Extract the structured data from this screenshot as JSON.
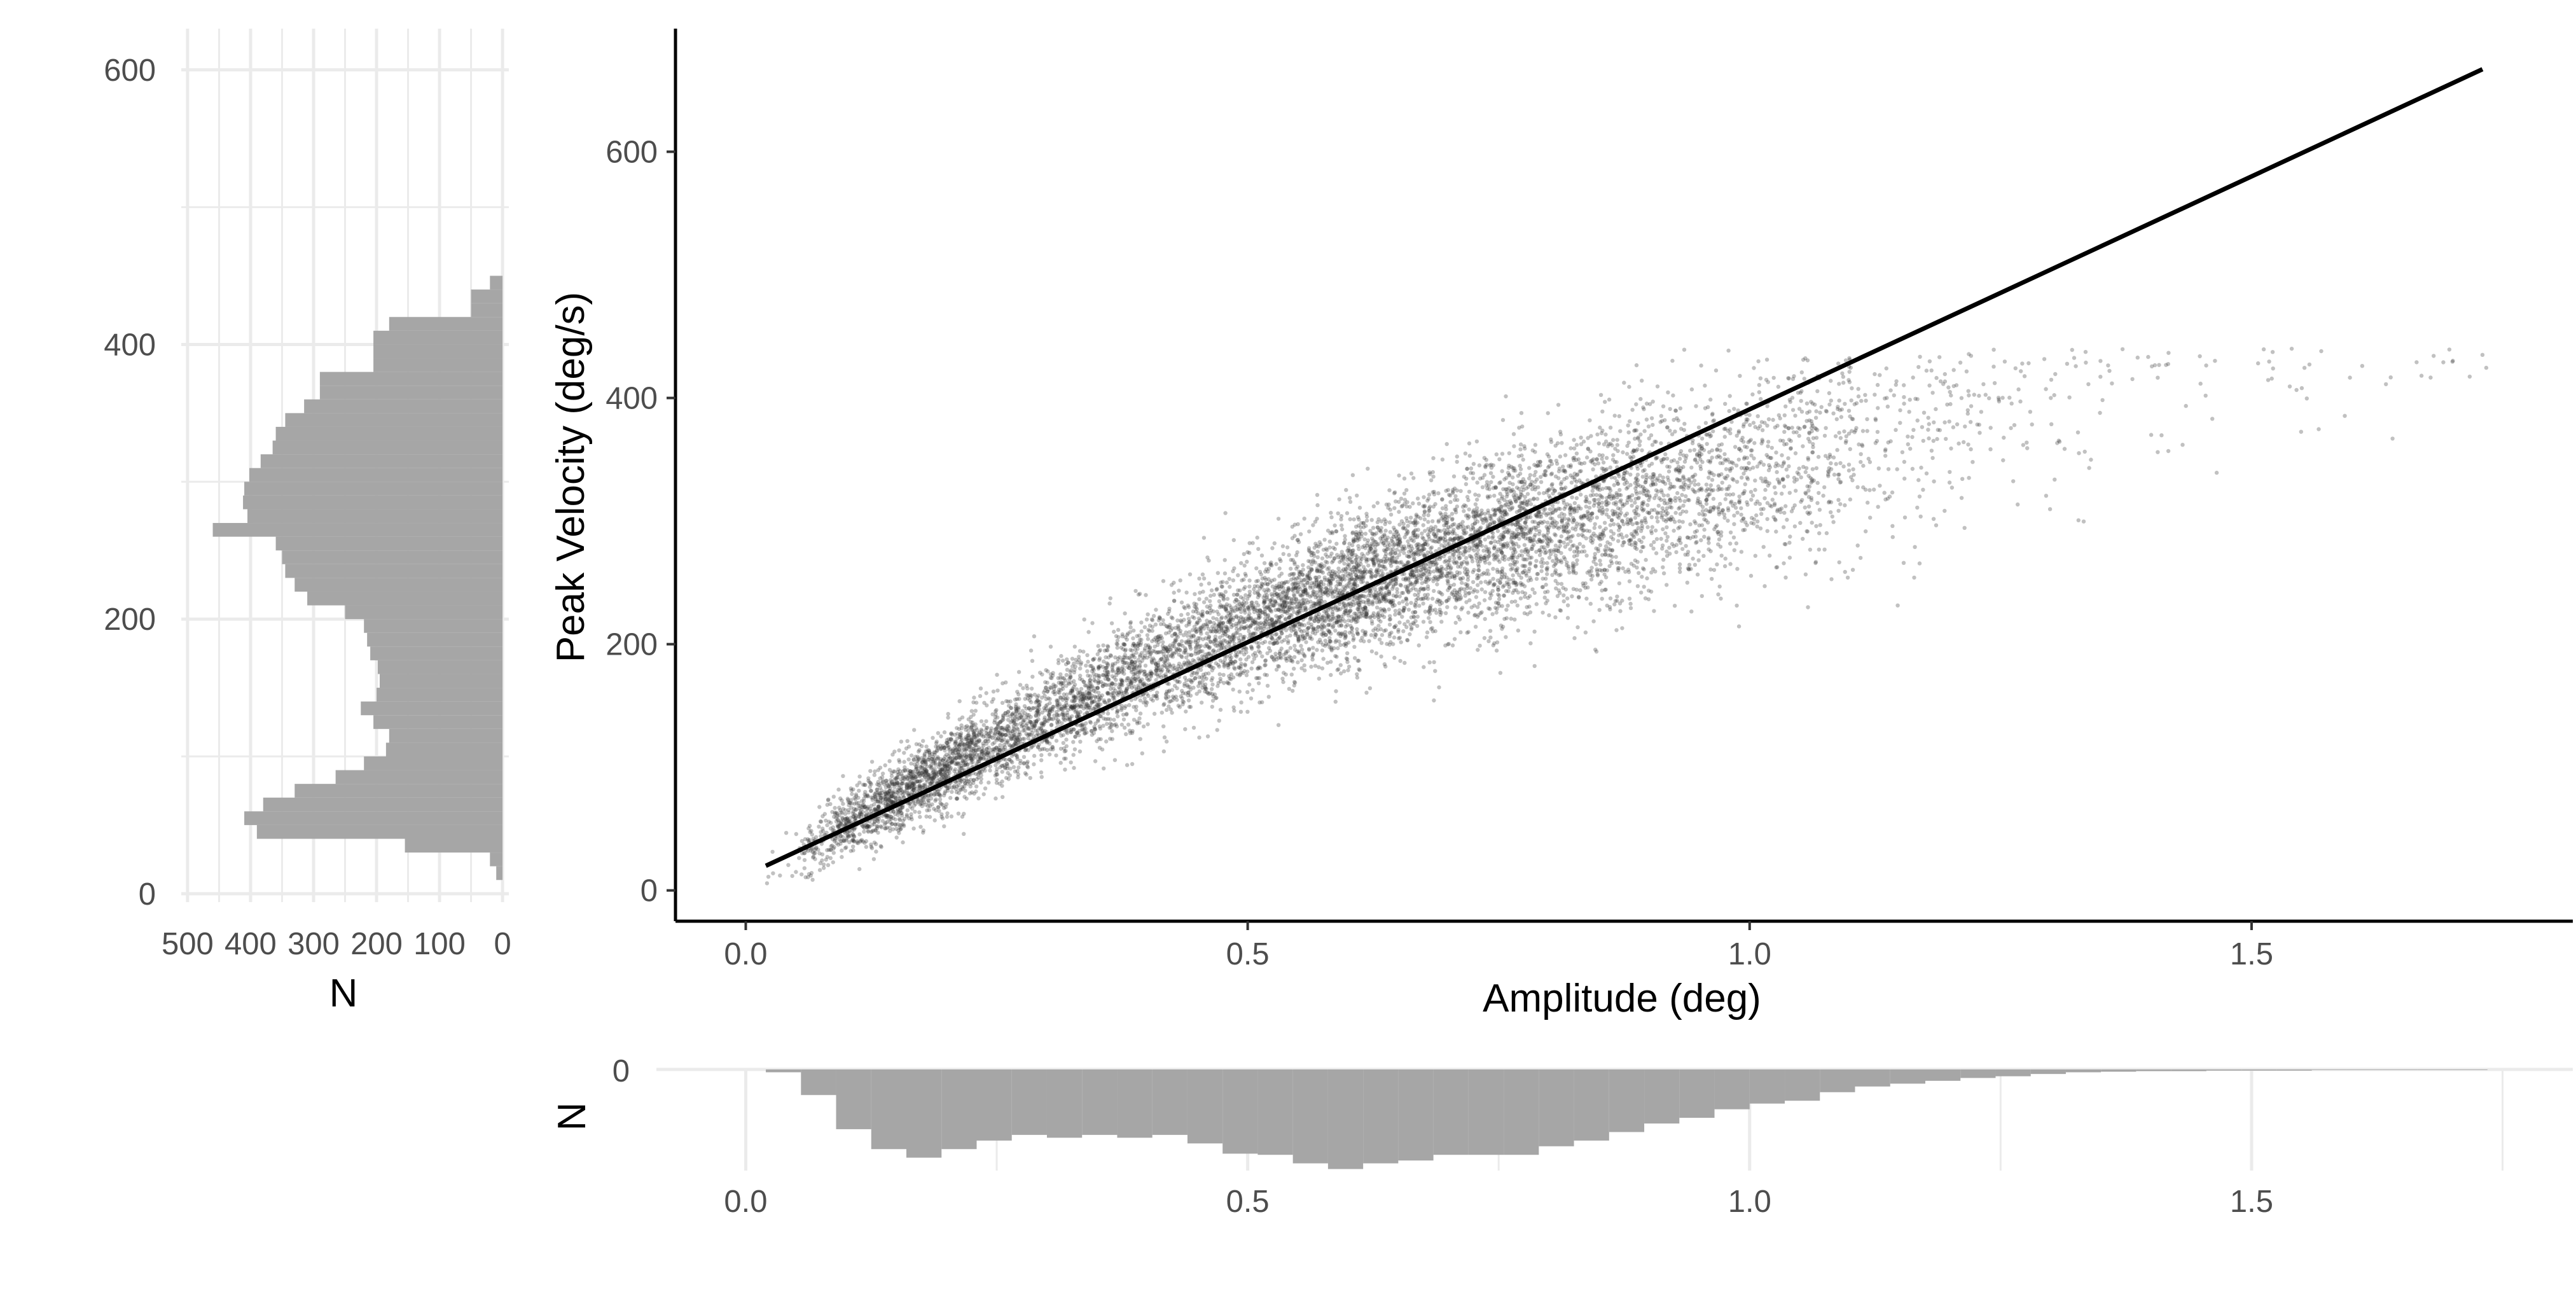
{
  "colors": {
    "histogram_fill": "#a6a6a6",
    "point": "#333333",
    "fit_line": "#000000",
    "grid": "#ebebeb",
    "axis_line": "#000000",
    "tick_text": "#4d4d4d"
  },
  "chart_data": [
    {
      "type": "scatter",
      "panel": "main",
      "xlabel": "Amplitude (deg)",
      "ylabel": "Peak Velocity (deg/s)",
      "xlim": [
        -0.07,
        1.82
      ],
      "ylim": [
        -25,
        700
      ],
      "x_ticks": [
        0.0,
        0.5,
        1.0,
        1.5
      ],
      "x_tick_labels": [
        "0.0",
        "0.5",
        "1.0",
        "1.5"
      ],
      "y_ticks": [
        0,
        200,
        400,
        600
      ],
      "y_tick_labels": [
        "0",
        "200",
        "400",
        "600"
      ],
      "grid": false,
      "point_count_approx": 9000,
      "point_alpha": 0.3,
      "points_sample": {
        "x": [
          0.05,
          0.08,
          0.1,
          0.12,
          0.15,
          0.18,
          0.2,
          0.25,
          0.3,
          0.35,
          0.4,
          0.45,
          0.5,
          0.55,
          0.6,
          0.65,
          0.7,
          0.75,
          0.8,
          0.85,
          0.9,
          0.95,
          1.0,
          1.05,
          1.1,
          1.15,
          1.2,
          1.3,
          1.4,
          1.54,
          1.73
        ],
        "y": [
          15,
          25,
          35,
          40,
          50,
          60,
          70,
          90,
          120,
          150,
          175,
          200,
          230,
          250,
          265,
          280,
          295,
          310,
          325,
          335,
          345,
          355,
          365,
          375,
          385,
          390,
          395,
          400,
          370,
          440,
          435
        ]
      },
      "fit_line": {
        "x": [
          0.02,
          1.73
        ],
        "y": [
          20,
          667
        ]
      }
    },
    {
      "type": "bar",
      "panel": "left-marginal-histogram",
      "orientation": "horizontal",
      "xlabel": "N",
      "ylabel": "",
      "value_axis_reversed": true,
      "xlim": [
        510,
        -10
      ],
      "ylim": [
        -20,
        630
      ],
      "x_ticks": [
        500,
        400,
        300,
        200,
        100,
        0
      ],
      "x_tick_labels": [
        "500",
        "400",
        "300",
        "200",
        "100",
        "0"
      ],
      "y_ticks": [
        0,
        200,
        400,
        600
      ],
      "y_tick_labels": [
        "0",
        "200",
        "400",
        "600"
      ],
      "grid": true,
      "bin_width": 10,
      "bin_starts": [
        10,
        20,
        30,
        40,
        50,
        60,
        70,
        80,
        90,
        100,
        110,
        120,
        130,
        140,
        150,
        160,
        170,
        180,
        190,
        200,
        210,
        220,
        230,
        240,
        250,
        260,
        270,
        280,
        290,
        300,
        310,
        320,
        330,
        340,
        350,
        360,
        370,
        380,
        390,
        400,
        410,
        420,
        430,
        440
      ],
      "values": [
        10,
        20,
        155,
        390,
        410,
        380,
        330,
        265,
        220,
        185,
        180,
        205,
        225,
        200,
        195,
        198,
        210,
        215,
        220,
        250,
        310,
        330,
        345,
        350,
        360,
        460,
        405,
        412,
        410,
        402,
        384,
        365,
        360,
        345,
        315,
        290,
        290,
        205,
        205,
        205,
        180,
        50,
        50,
        20
      ]
    },
    {
      "type": "bar",
      "panel": "bottom-marginal-histogram",
      "orientation": "vertical",
      "xlabel": "",
      "ylabel": "N",
      "value_axis_reversed": true,
      "xlim": [
        -0.07,
        1.82
      ],
      "ylim": [
        0,
        190
      ],
      "x_ticks": [
        0.0,
        0.5,
        1.0,
        1.5
      ],
      "x_tick_labels": [
        "0.0",
        "0.5",
        "1.0",
        "1.5"
      ],
      "y_ticks": [
        0
      ],
      "y_tick_labels": [
        "0"
      ],
      "grid": true,
      "bin_width": 0.035,
      "bin_starts": [
        0.02,
        0.055,
        0.09,
        0.125,
        0.16,
        0.195,
        0.23,
        0.265,
        0.3,
        0.335,
        0.37,
        0.405,
        0.44,
        0.475,
        0.51,
        0.545,
        0.58,
        0.615,
        0.65,
        0.685,
        0.72,
        0.755,
        0.79,
        0.825,
        0.86,
        0.895,
        0.93,
        0.965,
        1.0,
        1.035,
        1.07,
        1.105,
        1.14,
        1.175,
        1.21,
        1.245,
        1.28,
        1.315,
        1.35,
        1.385,
        1.42,
        1.455,
        1.49,
        1.525,
        1.56,
        1.595,
        1.63,
        1.665,
        1.7
      ],
      "values": [
        5,
        45,
        105,
        140,
        155,
        140,
        125,
        115,
        120,
        115,
        120,
        115,
        130,
        148,
        150,
        165,
        175,
        165,
        160,
        150,
        150,
        150,
        135,
        125,
        110,
        95,
        85,
        70,
        60,
        55,
        40,
        30,
        25,
        20,
        15,
        12,
        8,
        5,
        4,
        3,
        3,
        2,
        2,
        2,
        1,
        1,
        1,
        1,
        1
      ]
    }
  ]
}
